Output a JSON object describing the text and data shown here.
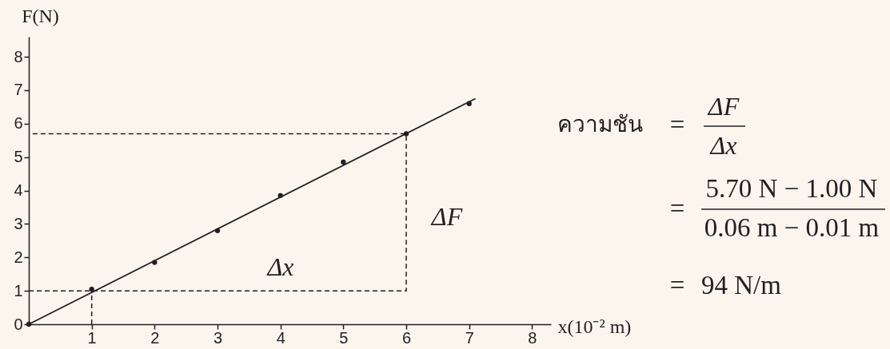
{
  "chart_data": {
    "type": "scatter",
    "xlabel": "x(10⁻² m)",
    "ylabel": "F(N)",
    "xlim": [
      0,
      8.3
    ],
    "ylim": [
      0,
      8.6
    ],
    "xticks": [
      1,
      2,
      3,
      4,
      5,
      6,
      7,
      8
    ],
    "yticks": [
      0,
      1,
      2,
      3,
      4,
      5,
      6,
      7,
      8
    ],
    "series": [
      {
        "color": "#231f20",
        "marker": "circle",
        "x": [
          0,
          1,
          2,
          3,
          4,
          5,
          6,
          7
        ],
        "values": [
          0,
          1.05,
          1.85,
          2.8,
          3.85,
          4.85,
          5.7,
          6.6
        ]
      },
      {
        "type": "line",
        "color": "#231f20",
        "line_style": "solid",
        "x": [
          0,
          7.1
        ],
        "values": [
          0,
          6.75
        ]
      },
      {
        "type": "line",
        "color": "#231f20",
        "line_style": "dashed",
        "x": [
          0,
          6,
          6,
          0
        ],
        "values": [
          1,
          1,
          5.7,
          5.7
        ]
      },
      {
        "type": "line",
        "color": "#231f20",
        "line_style": "dashed",
        "x": [
          1,
          1
        ],
        "values": [
          0,
          1
        ]
      }
    ],
    "annotations": [
      "Δx",
      "ΔF",
      "ความชัน",
      "=",
      "ΔF",
      "Δx",
      "=",
      "5.70 N − 1.00 N",
      "0.06 m − 0.01 m",
      "=",
      "94 N/m"
    ]
  }
}
